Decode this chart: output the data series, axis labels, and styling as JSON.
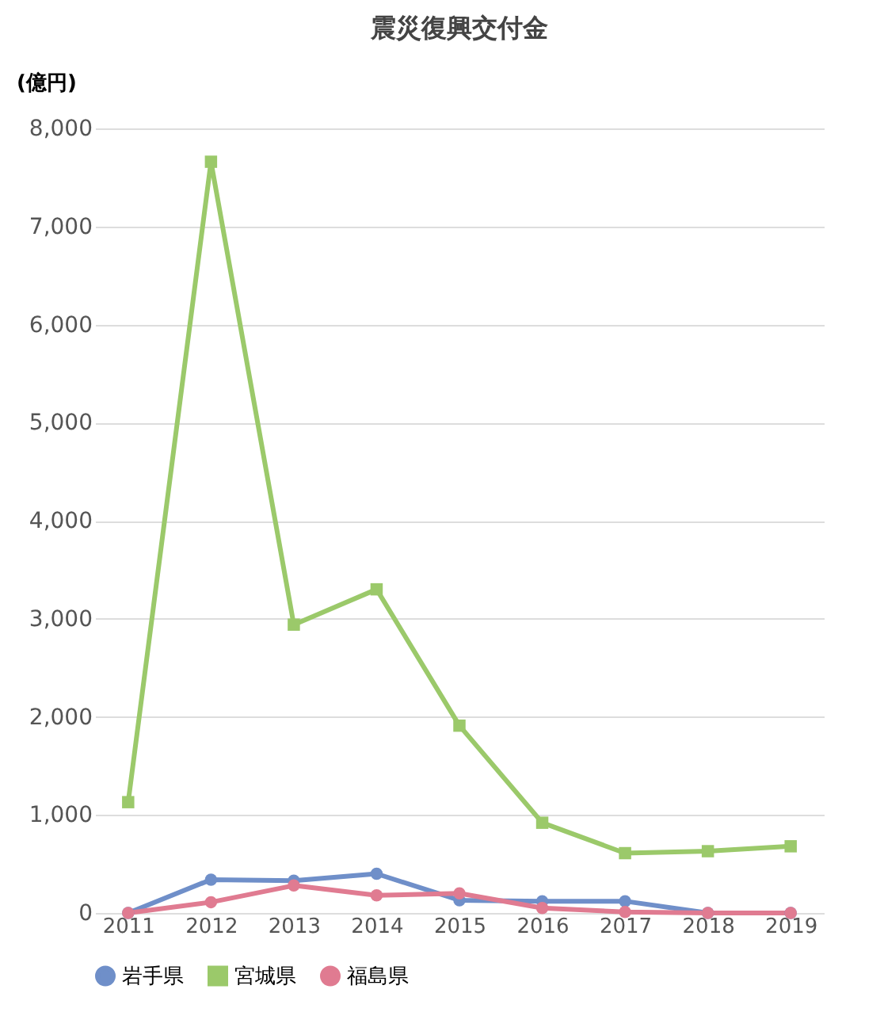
{
  "chart_data": {
    "type": "line",
    "title": "震災復興交付金",
    "ylabel": "(億円)",
    "x": [
      2011,
      2012,
      2013,
      2014,
      2015,
      2016,
      2017,
      2018,
      2019
    ],
    "xticks": [
      2011,
      2012,
      2013,
      2014,
      2015,
      2016,
      2017,
      2018,
      2019
    ],
    "xlim": [
      2010.6,
      2019.4
    ],
    "ylim": [
      0,
      8000
    ],
    "yticks": [
      {
        "value": 0,
        "label": "0"
      },
      {
        "value": 1000,
        "label": "1,000"
      },
      {
        "value": 2000,
        "label": "2,000"
      },
      {
        "value": 3000,
        "label": "3,000"
      },
      {
        "value": 4000,
        "label": "4,000"
      },
      {
        "value": 5000,
        "label": "5,000"
      },
      {
        "value": 6000,
        "label": "6,000"
      },
      {
        "value": 7000,
        "label": "7,000"
      },
      {
        "value": 8000,
        "label": "8,000"
      }
    ],
    "grid": "y",
    "legend": "bottom",
    "line_style": "solid",
    "series": [
      {
        "name": "岩手県",
        "color": "#6f8fc9",
        "marker": "circle",
        "values": [
          0,
          340,
          330,
          400,
          130,
          120,
          120,
          0,
          0
        ]
      },
      {
        "name": "宮城県",
        "color": "#9bc96a",
        "marker": "square",
        "values": [
          1130,
          7660,
          2940,
          3300,
          1910,
          920,
          610,
          630,
          680
        ]
      },
      {
        "name": "福島県",
        "color": "#e07b91",
        "marker": "circle",
        "values": [
          0,
          110,
          280,
          180,
          200,
          50,
          10,
          0,
          0
        ]
      }
    ]
  }
}
